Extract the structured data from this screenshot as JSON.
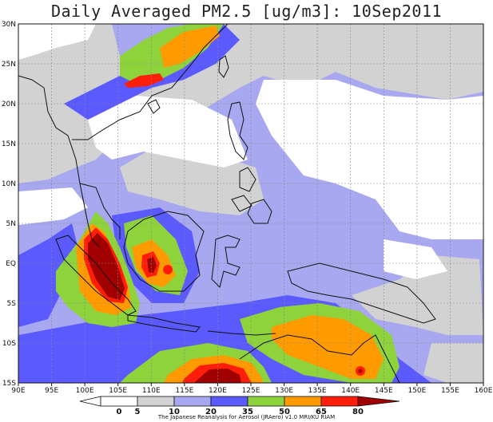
{
  "title": "Daily Averaged PM2.5 [ug/m3]: 10Sep2011",
  "credit": "The Japanese Reanalysis for Aerosol (JRAero) v1.0 MRI/KU RIAM",
  "map": {
    "projection": "lat-lon",
    "lon_range": [
      90,
      160
    ],
    "lat_range": [
      -15,
      30
    ],
    "grid": true,
    "lon_ticks": [
      "90E",
      "95E",
      "100E",
      "105E",
      "110E",
      "115E",
      "120E",
      "125E",
      "130E",
      "135E",
      "140E",
      "145E",
      "150E",
      "155E",
      "160E"
    ],
    "lat_ticks": [
      "30N",
      "25N",
      "20N",
      "15N",
      "10N",
      "5N",
      "EQ",
      "5S",
      "10S",
      "15S"
    ],
    "region": "Southeast Asia / Maritime Continent"
  },
  "colorbar": {
    "levels": [
      "0",
      "5",
      "10",
      "20",
      "35",
      "50",
      "65",
      "80"
    ],
    "colors": [
      "#ffffff",
      "#ffffff",
      "#d2d2d2",
      "#a8a8f0",
      "#5a5aff",
      "#8ed23c",
      "#ff9a00",
      "#ff1e0a",
      "#a00000"
    ]
  },
  "chart_data": {
    "type": "heatmap",
    "title": "Daily Averaged PM2.5 [ug/m3]: 10Sep2011",
    "variable": "PM2.5",
    "units": "ug/m3",
    "date": "10Sep2011",
    "xlabel": "",
    "ylabel": "",
    "xlim": [
      90,
      160
    ],
    "ylim": [
      -15,
      30
    ],
    "levels": [
      0,
      5,
      10,
      20,
      35,
      50,
      65,
      80
    ],
    "hotspots": [
      {
        "lon": 102.5,
        "lat": -1.5,
        "approx_max": 80
      },
      {
        "lon": 111.0,
        "lat": -0.5,
        "approx_max": 80
      },
      {
        "lon": 120.5,
        "lat": -14.0,
        "approx_max": 80
      },
      {
        "lon": 141.5,
        "lat": -13.0,
        "approx_max": 80
      },
      {
        "lon": 108.0,
        "lat": 28.0,
        "approx_max": 65
      },
      {
        "lon": 136.0,
        "lat": -11.0,
        "approx_max": 65
      }
    ]
  }
}
